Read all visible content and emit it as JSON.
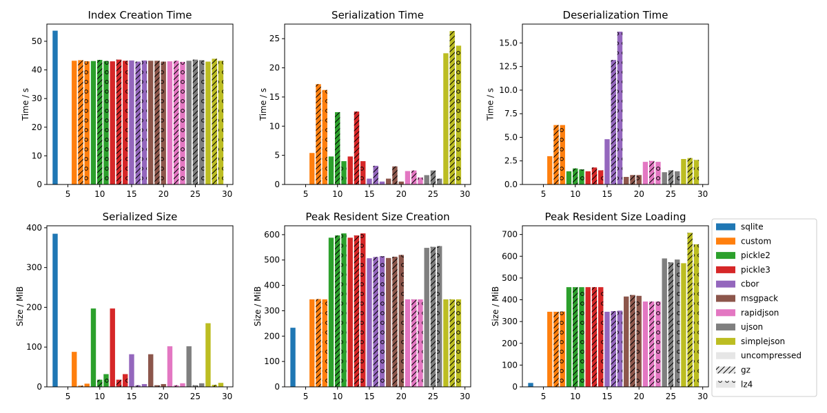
{
  "chart_data": [
    {
      "type": "bar",
      "title": "Index Creation Time",
      "xlabel": "",
      "ylabel": "Time / s",
      "xlim": [
        1.7,
        30.9
      ],
      "ylim": [
        0,
        56
      ],
      "xticks": [
        5,
        10,
        15,
        20,
        25,
        30
      ],
      "xtick_labels": [
        "5",
        "10",
        "15",
        "20",
        "25",
        "30"
      ],
      "yticks": [
        0,
        10,
        20,
        30,
        40,
        50
      ],
      "ytick_labels": [
        "0",
        "10",
        "20",
        "30",
        "40",
        "50"
      ],
      "series": [
        {
          "name": "sqlite",
          "values": [
            53.7,
            null,
            null
          ]
        },
        {
          "name": "custom",
          "values": [
            43.2,
            43.4,
            43.0
          ]
        },
        {
          "name": "pickle2",
          "values": [
            43.1,
            43.5,
            43.1
          ]
        },
        {
          "name": "pickle3",
          "values": [
            43.0,
            43.6,
            43.2
          ]
        },
        {
          "name": "cbor",
          "values": [
            43.3,
            42.9,
            43.3
          ]
        },
        {
          "name": "msgpack",
          "values": [
            43.2,
            43.2,
            42.9
          ]
        },
        {
          "name": "rapidjson",
          "values": [
            43.0,
            43.2,
            42.8
          ]
        },
        {
          "name": "ujson",
          "values": [
            43.2,
            43.6,
            43.4
          ]
        },
        {
          "name": "simplejson",
          "values": [
            42.9,
            43.9,
            43.2
          ]
        }
      ]
    },
    {
      "type": "bar",
      "title": "Serialization Time",
      "xlabel": "",
      "ylabel": "Time / s",
      "xlim": [
        1.7,
        30.9
      ],
      "ylim": [
        0,
        27.5
      ],
      "xticks": [
        5,
        10,
        15,
        20,
        25,
        30
      ],
      "xtick_labels": [
        "5",
        "10",
        "15",
        "20",
        "25",
        "30"
      ],
      "yticks": [
        0,
        5,
        10,
        15,
        20,
        25
      ],
      "ytick_labels": [
        "0",
        "5",
        "10",
        "15",
        "20",
        "25"
      ],
      "series": [
        {
          "name": "sqlite",
          "values": [
            null,
            null,
            null
          ]
        },
        {
          "name": "custom",
          "values": [
            5.4,
            17.2,
            16.2
          ]
        },
        {
          "name": "pickle2",
          "values": [
            4.8,
            12.4,
            4.0
          ]
        },
        {
          "name": "pickle3",
          "values": [
            4.8,
            12.5,
            4.0
          ]
        },
        {
          "name": "cbor",
          "values": [
            1.0,
            3.2,
            0.5
          ]
        },
        {
          "name": "msgpack",
          "values": [
            1.0,
            3.1,
            0.5
          ]
        },
        {
          "name": "rapidjson",
          "values": [
            2.3,
            2.4,
            1.2
          ]
        },
        {
          "name": "ujson",
          "values": [
            1.6,
            2.4,
            1.0
          ]
        },
        {
          "name": "simplejson",
          "values": [
            22.5,
            26.3,
            23.8
          ]
        }
      ]
    },
    {
      "type": "bar",
      "title": "Deserialization Time",
      "xlabel": "",
      "ylabel": "Time / s",
      "xlim": [
        1.7,
        30.9
      ],
      "ylim": [
        0,
        17
      ],
      "xticks": [
        5,
        10,
        15,
        20,
        25,
        30
      ],
      "xtick_labels": [
        "5",
        "10",
        "15",
        "20",
        "25",
        "30"
      ],
      "yticks": [
        0,
        2.5,
        5,
        7.5,
        10,
        12.5,
        15
      ],
      "ytick_labels": [
        "0.0",
        "2.5",
        "5.0",
        "7.5",
        "10.0",
        "12.5",
        "15.0"
      ],
      "series": [
        {
          "name": "sqlite",
          "values": [
            null,
            null,
            null
          ]
        },
        {
          "name": "custom",
          "values": [
            3.0,
            6.3,
            6.3
          ]
        },
        {
          "name": "pickle2",
          "values": [
            1.4,
            1.7,
            1.6
          ]
        },
        {
          "name": "pickle3",
          "values": [
            1.4,
            1.8,
            1.5
          ]
        },
        {
          "name": "cbor",
          "values": [
            4.8,
            13.2,
            16.2
          ]
        },
        {
          "name": "msgpack",
          "values": [
            0.8,
            1.0,
            1.0
          ]
        },
        {
          "name": "rapidjson",
          "values": [
            2.4,
            2.5,
            2.4
          ]
        },
        {
          "name": "ujson",
          "values": [
            1.3,
            1.5,
            1.4
          ]
        },
        {
          "name": "simplejson",
          "values": [
            2.7,
            2.8,
            2.6
          ]
        }
      ]
    },
    {
      "type": "bar",
      "title": "Serialized Size",
      "xlabel": "",
      "ylabel": "Size / MiB",
      "xlim": [
        1.7,
        30.9
      ],
      "ylim": [
        0,
        405
      ],
      "xticks": [
        5,
        10,
        15,
        20,
        25,
        30
      ],
      "xtick_labels": [
        "5",
        "10",
        "15",
        "20",
        "25",
        "30"
      ],
      "yticks": [
        0,
        100,
        200,
        300,
        400
      ],
      "ytick_labels": [
        "0",
        "100",
        "200",
        "300",
        "400"
      ],
      "series": [
        {
          "name": "sqlite",
          "values": [
            385,
            null,
            null
          ]
        },
        {
          "name": "custom",
          "values": [
            88,
            3,
            8
          ]
        },
        {
          "name": "pickle2",
          "values": [
            197,
            18,
            32
          ]
        },
        {
          "name": "pickle3",
          "values": [
            197,
            18,
            32
          ]
        },
        {
          "name": "cbor",
          "values": [
            82,
            4,
            7
          ]
        },
        {
          "name": "msgpack",
          "values": [
            82,
            4,
            7
          ]
        },
        {
          "name": "rapidjson",
          "values": [
            102,
            4,
            9
          ]
        },
        {
          "name": "ujson",
          "values": [
            102,
            4,
            9
          ]
        },
        {
          "name": "simplejson",
          "values": [
            160,
            5,
            10
          ]
        }
      ]
    },
    {
      "type": "bar",
      "title": "Peak Resident Size Creation",
      "xlabel": "",
      "ylabel": "Size / MiB",
      "xlim": [
        1.7,
        30.9
      ],
      "ylim": [
        0,
        635
      ],
      "xticks": [
        5,
        10,
        15,
        20,
        25,
        30
      ],
      "xtick_labels": [
        "5",
        "10",
        "15",
        "20",
        "25",
        "30"
      ],
      "yticks": [
        0,
        100,
        200,
        300,
        400,
        500,
        600
      ],
      "ytick_labels": [
        "0",
        "100",
        "200",
        "300",
        "400",
        "500",
        "600"
      ],
      "series": [
        {
          "name": "sqlite",
          "values": [
            233,
            null,
            null
          ]
        },
        {
          "name": "custom",
          "values": [
            345,
            346,
            345
          ]
        },
        {
          "name": "pickle2",
          "values": [
            588,
            597,
            605
          ]
        },
        {
          "name": "pickle3",
          "values": [
            588,
            597,
            605
          ]
        },
        {
          "name": "cbor",
          "values": [
            507,
            512,
            515
          ]
        },
        {
          "name": "msgpack",
          "values": [
            508,
            513,
            520
          ]
        },
        {
          "name": "rapidjson",
          "values": [
            345,
            345,
            345
          ]
        },
        {
          "name": "ujson",
          "values": [
            548,
            552,
            555
          ]
        },
        {
          "name": "simplejson",
          "values": [
            345,
            345,
            345
          ]
        }
      ]
    },
    {
      "type": "bar",
      "title": "Peak Resident Size Loading",
      "xlabel": "",
      "ylabel": "Size / MiB",
      "xlim": [
        1.7,
        30.9
      ],
      "ylim": [
        0,
        740
      ],
      "xticks": [
        5,
        10,
        15,
        20,
        25,
        30
      ],
      "xtick_labels": [
        "5",
        "10",
        "15",
        "20",
        "25",
        "30"
      ],
      "yticks": [
        0,
        100,
        200,
        300,
        400,
        500,
        600,
        700
      ],
      "ytick_labels": [
        "0",
        "100",
        "200",
        "300",
        "400",
        "500",
        "600",
        "700"
      ],
      "series": [
        {
          "name": "sqlite",
          "values": [
            18,
            null,
            null
          ]
        },
        {
          "name": "custom",
          "values": [
            345,
            345,
            346
          ]
        },
        {
          "name": "pickle2",
          "values": [
            458,
            458,
            458
          ]
        },
        {
          "name": "pickle3",
          "values": [
            458,
            458,
            458
          ]
        },
        {
          "name": "cbor",
          "values": [
            345,
            348,
            350
          ]
        },
        {
          "name": "msgpack",
          "values": [
            415,
            422,
            418
          ]
        },
        {
          "name": "rapidjson",
          "values": [
            392,
            392,
            392
          ]
        },
        {
          "name": "ujson",
          "values": [
            590,
            572,
            585
          ]
        },
        {
          "name": "simplejson",
          "values": [
            568,
            708,
            655
          ]
        }
      ]
    }
  ],
  "legend": {
    "placement": "right-outside",
    "series": [
      {
        "name": "sqlite",
        "color": "#1f77b4"
      },
      {
        "name": "custom",
        "color": "#ff7f0e"
      },
      {
        "name": "pickle2",
        "color": "#2ca02c"
      },
      {
        "name": "pickle3",
        "color": "#d62728"
      },
      {
        "name": "cbor",
        "color": "#9467bd"
      },
      {
        "name": "msgpack",
        "color": "#8c564b"
      },
      {
        "name": "rapidjson",
        "color": "#e377c2"
      },
      {
        "name": "ujson",
        "color": "#7f7f7f"
      },
      {
        "name": "simplejson",
        "color": "#bcbd22"
      }
    ],
    "compression": [
      {
        "name": "uncompressed",
        "pattern": "none"
      },
      {
        "name": "gz",
        "pattern": "slash-hatch"
      },
      {
        "name": "lz4",
        "pattern": "circle-hatch"
      }
    ]
  },
  "colors": {
    "axis": "#000000",
    "background": "#ffffff",
    "legend_swatch_pattern_bg": "#e6e6e6"
  }
}
